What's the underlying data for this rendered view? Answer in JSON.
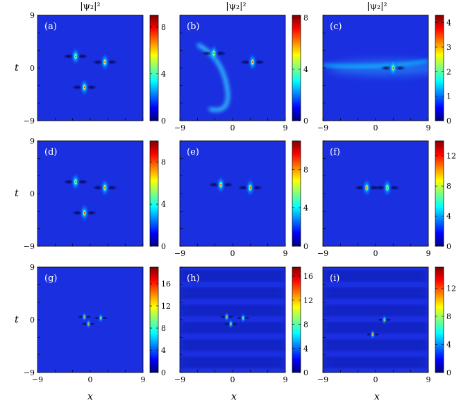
{
  "figure": {
    "column_titles": [
      "|ψ₂|²",
      "|ψ₂|²",
      "|ψ₂|²"
    ],
    "xlabel": "x",
    "ylabel": "t",
    "colormap": [
      "#00007f",
      "#0000ff",
      "#007fff",
      "#00ffff",
      "#7fff7f",
      "#ffff00",
      "#ff7f00",
      "#ff0000",
      "#7f0000"
    ],
    "background_color": "#1a2fe0"
  },
  "chart_data": [
    {
      "type": "heatmap",
      "label": "(a)",
      "xlim": [
        -9,
        9
      ],
      "ylim": [
        -9,
        9
      ],
      "x_ticks": [
        "−9",
        "0",
        "9"
      ],
      "y_ticks": [
        "−9",
        "0",
        "9"
      ],
      "show_x_ticks": false,
      "colorbar": {
        "min": 0,
        "max": 9,
        "ticks": [
          0,
          4,
          8
        ]
      },
      "peaks": [
        {
          "x": -2.5,
          "y": 2,
          "value": 8.6
        },
        {
          "x": 2.5,
          "y": 1,
          "value": 8.6
        },
        {
          "x": -1,
          "y": -3.3,
          "value": 8.6
        }
      ]
    },
    {
      "type": "heatmap",
      "label": "(b)",
      "xlim": [
        -9,
        9
      ],
      "ylim": [
        -9,
        9
      ],
      "x_ticks": [
        "−9",
        "0",
        "9"
      ],
      "y_ticks": [],
      "show_x_ticks": true,
      "colorbar": {
        "min": 0,
        "max": 8.2,
        "ticks": [
          0,
          4,
          8
        ]
      },
      "peaks": [
        {
          "x": -3.2,
          "y": 2.5,
          "value": 8
        },
        {
          "x": 3.4,
          "y": 1,
          "value": 7.5
        }
      ]
    },
    {
      "type": "heatmap",
      "label": "(c)",
      "xlim": [
        -9,
        9
      ],
      "ylim": [
        -9,
        9
      ],
      "x_ticks": [
        "−9",
        "0",
        "9"
      ],
      "y_ticks": [],
      "show_x_ticks": true,
      "colorbar": {
        "min": 0,
        "max": 4.3,
        "ticks": [
          0,
          1,
          2,
          3,
          4
        ]
      },
      "peaks": [
        {
          "x": 3,
          "y": 0,
          "value": 4.2
        }
      ]
    },
    {
      "type": "heatmap",
      "label": "(d)",
      "xlim": [
        -9,
        9
      ],
      "ylim": [
        -9,
        9
      ],
      "x_ticks": [
        "−9",
        "0",
        "9"
      ],
      "y_ticks": [
        "−9",
        "0",
        "9"
      ],
      "show_x_ticks": false,
      "colorbar": {
        "min": 0,
        "max": 10,
        "ticks": [
          0,
          4,
          8
        ]
      },
      "peaks": [
        {
          "x": -2.5,
          "y": 2,
          "value": 9.5
        },
        {
          "x": 2.5,
          "y": 1,
          "value": 9.5
        },
        {
          "x": -1,
          "y": -3.3,
          "value": 9.5
        }
      ]
    },
    {
      "type": "heatmap",
      "label": "(e)",
      "xlim": [
        -9,
        9
      ],
      "ylim": [
        -9,
        9
      ],
      "x_ticks": [
        "−9",
        "0",
        "9"
      ],
      "y_ticks": [],
      "show_x_ticks": true,
      "colorbar": {
        "min": 0,
        "max": 11,
        "ticks": [
          0,
          4,
          8
        ]
      },
      "peaks": [
        {
          "x": -2,
          "y": 1.5,
          "value": 10.5
        },
        {
          "x": 3,
          "y": 1,
          "value": 10.5
        }
      ]
    },
    {
      "type": "heatmap",
      "label": "(f)",
      "xlim": [
        -9,
        9
      ],
      "ylim": [
        -9,
        9
      ],
      "x_ticks": [
        "−9",
        "0",
        "9"
      ],
      "y_ticks": [],
      "show_x_ticks": true,
      "colorbar": {
        "min": 0,
        "max": 14,
        "ticks": [
          0,
          4,
          8,
          12
        ]
      },
      "peaks": [
        {
          "x": -1.5,
          "y": 1,
          "value": 13.5
        },
        {
          "x": 2,
          "y": 1,
          "value": 13.5
        }
      ]
    },
    {
      "type": "heatmap",
      "label": "(g)",
      "xlim": [
        -9,
        9
      ],
      "ylim": [
        -9,
        9
      ],
      "x_ticks": [
        "−9",
        "0",
        "9"
      ],
      "y_ticks": [
        "−9",
        "0",
        "9"
      ],
      "show_x_ticks": true,
      "colorbar": {
        "min": 0,
        "max": 19,
        "ticks": [
          0,
          4,
          8,
          12,
          16
        ]
      },
      "peaks": [
        {
          "x": -1,
          "y": 0.5,
          "value": 18
        },
        {
          "x": 1.8,
          "y": 0.3,
          "value": 18
        },
        {
          "x": -0.3,
          "y": -0.7,
          "value": 18
        }
      ]
    },
    {
      "type": "heatmap",
      "label": "(h)",
      "xlim": [
        -9,
        9
      ],
      "ylim": [
        -9,
        9
      ],
      "x_ticks": [
        "−9",
        "0",
        "9"
      ],
      "y_ticks": [],
      "show_x_ticks": true,
      "colorbar": {
        "min": 0,
        "max": 17.5,
        "ticks": [
          0,
          4,
          8,
          12,
          16
        ]
      },
      "peaks": [
        {
          "x": -1,
          "y": 0.5,
          "value": 17
        },
        {
          "x": 1.8,
          "y": 0.3,
          "value": 17
        },
        {
          "x": -0.3,
          "y": -0.7,
          "value": 17
        }
      ]
    },
    {
      "type": "heatmap",
      "label": "(i)",
      "xlim": [
        -9,
        9
      ],
      "ylim": [
        -9,
        9
      ],
      "x_ticks": [
        "−9",
        "0",
        "9"
      ],
      "y_ticks": [],
      "show_x_ticks": true,
      "colorbar": {
        "min": 0,
        "max": 15,
        "ticks": [
          0,
          4,
          8,
          12
        ]
      },
      "peaks": [
        {
          "x": 1.5,
          "y": 0,
          "value": 12
        },
        {
          "x": -0.5,
          "y": -2.5,
          "value": 14
        }
      ]
    }
  ]
}
